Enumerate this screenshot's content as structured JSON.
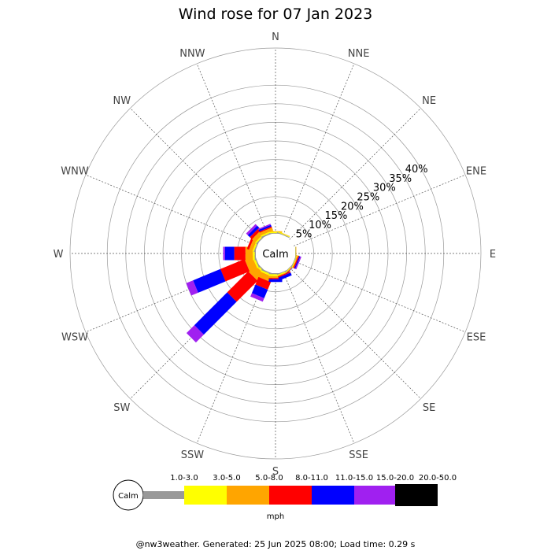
{
  "chart_data": {
    "type": "windrose",
    "title": "Wind rose for 07 Jan 2023",
    "directions": [
      "N",
      "NNE",
      "NE",
      "ENE",
      "E",
      "ESE",
      "SE",
      "SSE",
      "S",
      "SSW",
      "SW",
      "WSW",
      "W",
      "WNW",
      "NW",
      "NNW"
    ],
    "direction_angles": [
      0,
      22.5,
      45,
      67.5,
      90,
      112.5,
      135,
      157.5,
      180,
      202.5,
      225,
      247.5,
      270,
      292.5,
      315,
      337.5
    ],
    "radial_ticks": [
      "5%",
      "10%",
      "15%",
      "20%",
      "25%",
      "30%",
      "35%",
      "40%"
    ],
    "radial_tick_values": [
      5,
      10,
      15,
      20,
      25,
      30,
      35,
      40
    ],
    "radial_max": 50,
    "calm_label": "Calm",
    "units": "mph",
    "speed_bins": [
      {
        "label": "1.0-3.0",
        "color": "#999999"
      },
      {
        "label": "3.0-5.0",
        "color": "#ffff00"
      },
      {
        "label": "5.0-8.0",
        "color": "#ffa500"
      },
      {
        "label": "8.0-11.0",
        "color": "#ff0000"
      },
      {
        "label": "11.0-15.0",
        "color": "#0000ff"
      },
      {
        "label": "15.0-20.0",
        "color": "#a020f0"
      },
      {
        "label": "20.0-50.0",
        "color": "#000000"
      }
    ],
    "series": [
      {
        "direction": "SW",
        "angle": 225,
        "values": [
          0.3,
          0.5,
          2.5,
          8.0,
          12.5,
          3.0,
          0
        ]
      },
      {
        "direction": "WSW",
        "angle": 247.5,
        "values": [
          0.3,
          0.5,
          2.2,
          7.0,
          8.0,
          2.0,
          0
        ]
      },
      {
        "direction": "W",
        "angle": 270,
        "values": [
          0.3,
          0.5,
          2.0,
          3.0,
          2.5,
          0.5,
          0
        ]
      },
      {
        "direction": "SSW",
        "angle": 202.5,
        "values": [
          0.3,
          0.5,
          1.5,
          2.2,
          2.5,
          1.0,
          0
        ]
      },
      {
        "direction": "S",
        "angle": 180,
        "values": [
          0.3,
          0.5,
          0.5,
          0.3,
          0.8,
          0,
          0
        ]
      },
      {
        "direction": "WNW",
        "angle": 292.5,
        "values": [
          0.3,
          0.4,
          1.0,
          0.6,
          0,
          0,
          0
        ]
      },
      {
        "direction": "NW",
        "angle": 315,
        "values": [
          0.3,
          0.4,
          1.2,
          0.8,
          0.8,
          0.6,
          0
        ]
      },
      {
        "direction": "NNW",
        "angle": 337.5,
        "values": [
          0.3,
          0.4,
          0.8,
          0.3,
          0.5,
          0.3,
          0
        ]
      },
      {
        "direction": "N",
        "angle": 0,
        "values": [
          0.2,
          0.3,
          0.2,
          0,
          0,
          0,
          0
        ]
      },
      {
        "direction": "NNE",
        "angle": 22.5,
        "values": [
          0.2,
          0.2,
          0.1,
          0,
          0,
          0,
          0
        ]
      },
      {
        "direction": "SSE",
        "angle": 157.5,
        "values": [
          0.2,
          0.3,
          0.2,
          0.3,
          0.8,
          0,
          0
        ]
      },
      {
        "direction": "SE",
        "angle": 135,
        "values": [
          0.2,
          0.2,
          0.1,
          0.1,
          0.1,
          0,
          0
        ]
      },
      {
        "direction": "ESE",
        "angle": 112.5,
        "values": [
          0.2,
          0.2,
          0.2,
          0.3,
          0.3,
          0.3,
          0
        ]
      },
      {
        "direction": "E",
        "angle": 90,
        "values": [
          0.1,
          0.1,
          0.1,
          0,
          0,
          0,
          0
        ]
      }
    ]
  },
  "footer": "@nw3weather. Generated: 25 Jun 2025 08:00; Load time: 0.29 s"
}
